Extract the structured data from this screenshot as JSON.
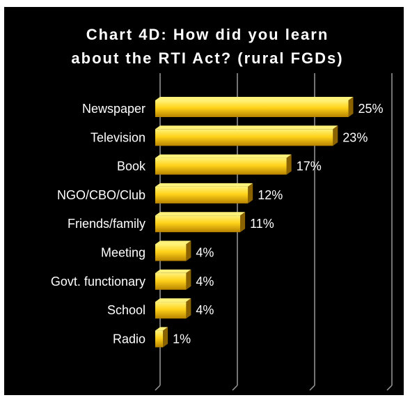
{
  "chart_data": {
    "type": "bar",
    "orientation": "horizontal",
    "title_lines": [
      "Chart 4D: How did you learn",
      "about the RTI Act? (rural FGDs)"
    ],
    "categories": [
      "Newspaper",
      "Television",
      "Book",
      "NGO/CBO/Club",
      "Friends/family",
      "Meeting",
      "Govt. functionary",
      "School",
      "Radio"
    ],
    "values": [
      25,
      23,
      17,
      12,
      11,
      4,
      4,
      4,
      1
    ],
    "value_labels": [
      "25%",
      "23%",
      "17%",
      "12%",
      "11%",
      "4%",
      "4%",
      "4%",
      "1%"
    ],
    "xlim": [
      0,
      30
    ],
    "grid": true,
    "legend": "none",
    "colors": {
      "background": "#000000",
      "bar_top": "#fff27a",
      "bar_mid": "#ffd21a",
      "bar_bottom": "#b88400",
      "bar_side": "#8a6200",
      "grid": "#9a9a9a",
      "text": "#ffffff"
    }
  }
}
